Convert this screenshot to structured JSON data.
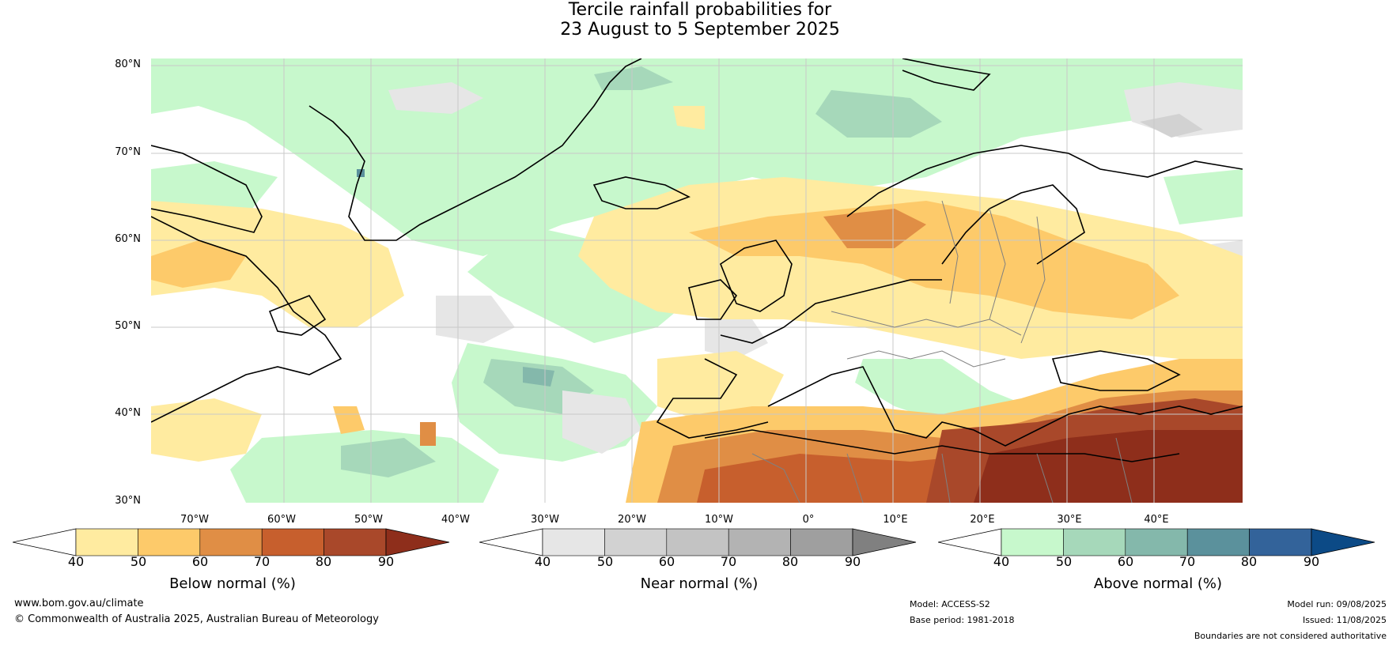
{
  "title_line1": "Tercile rainfall probabilities for",
  "title_line2": "23 August to 5 September 2025",
  "lat_labels": [
    "80°N",
    "70°N",
    "60°N",
    "50°N",
    "40°N",
    "30°N"
  ],
  "lon_labels": [
    "70°W",
    "60°W",
    "50°W",
    "40°W",
    "30°W",
    "20°W",
    "10°W",
    "0°",
    "10°E",
    "20°E",
    "30°E",
    "40°E"
  ],
  "colorbars": [
    {
      "label": "Below normal (%)",
      "ticks": [
        "40",
        "50",
        "60",
        "70",
        "80",
        "90"
      ],
      "colors": [
        "#ffffff",
        "#ffeba0",
        "#fdca6a",
        "#e08e45",
        "#c75f2d",
        "#a9482a",
        "#8e2e1b"
      ]
    },
    {
      "label": "Near normal (%)",
      "ticks": [
        "40",
        "50",
        "60",
        "70",
        "80",
        "90"
      ],
      "colors": [
        "#ffffff",
        "#e6e6e6",
        "#d2d2d2",
        "#c3c3c3",
        "#b3b3b3",
        "#9f9f9f",
        "#808080"
      ]
    },
    {
      "label": "Above normal (%)",
      "ticks": [
        "40",
        "50",
        "60",
        "70",
        "80",
        "90"
      ],
      "colors": [
        "#ffffff",
        "#c7f8cc",
        "#a6d8ba",
        "#84b8ab",
        "#5b919c",
        "#33639a",
        "#0c4a86"
      ]
    }
  ],
  "map_colors": {
    "below1": "#ffeba0",
    "below2": "#fdca6a",
    "below3": "#e08e45",
    "below4": "#c75f2d",
    "below5": "#a9482a",
    "below6": "#8e2e1b",
    "near1": "#e6e6e6",
    "near2": "#d2d2d2",
    "above1": "#c7f8cc",
    "above2": "#a6d8ba",
    "above3": "#84b8ab",
    "above4": "#5b919c",
    "coast": "#000000",
    "border": "#808080"
  },
  "footer": {
    "website": "www.bom.gov.au/climate",
    "copyright": "© Commonwealth of Australia 2025, Australian Bureau of Meteorology",
    "model": "Model: ACCESS-S2",
    "base_period": "Base period: 1981-2018",
    "model_run": "Model run: 09/08/2025",
    "issued": "Issued: 11/08/2025",
    "disclaimer": "Boundaries are not considered authoritative"
  }
}
